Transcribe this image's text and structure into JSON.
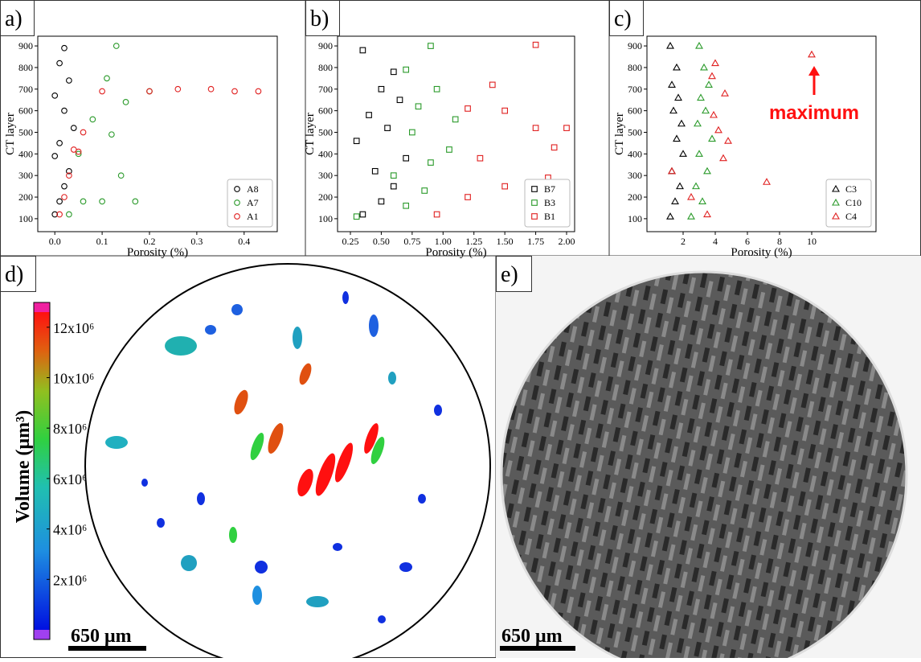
{
  "chart_data": [
    {
      "type": "scatter",
      "panel_label": "a)",
      "xlabel": "Porosity (%)",
      "ylabel": "CT layer",
      "xlim": [
        -0.036,
        0.47
      ],
      "ylim": [
        40,
        945
      ],
      "xticks": [
        {
          "value": 0,
          "label": "0.0"
        },
        0.1,
        0.2,
        0.3,
        0.4
      ],
      "yticks": [
        100,
        200,
        300,
        400,
        500,
        600,
        700,
        800,
        900
      ],
      "legend": "lower right",
      "series": [
        {
          "name": "A8",
          "color": "#000000",
          "marker": "circle",
          "x": [
            0.0,
            0.01,
            0.02,
            0.03,
            0.0,
            0.01,
            0.04,
            0.02,
            0.0,
            0.03,
            0.01,
            0.02
          ],
          "values": [
            120,
            180,
            250,
            320,
            390,
            450,
            520,
            600,
            670,
            740,
            820,
            890
          ]
        },
        {
          "name": "A7",
          "color": "#2a9a2a",
          "marker": "circle",
          "x": [
            0.03,
            0.06,
            0.1,
            0.14,
            0.17,
            0.05,
            0.12,
            0.08,
            0.15,
            0.2,
            0.11,
            0.13
          ],
          "values": [
            120,
            180,
            180,
            300,
            180,
            400,
            490,
            560,
            640,
            690,
            750,
            900
          ]
        },
        {
          "name": "A1",
          "color": "#e02020",
          "marker": "circle",
          "x": [
            0.01,
            0.02,
            0.03,
            0.05,
            0.04,
            0.06,
            0.1,
            0.2,
            0.26,
            0.33,
            0.38,
            0.43
          ],
          "values": [
            120,
            200,
            300,
            410,
            420,
            500,
            690,
            690,
            700,
            700,
            690,
            690
          ]
        }
      ]
    },
    {
      "type": "scatter",
      "panel_label": "b)",
      "xlabel": "Porosity (%)",
      "ylabel": "CT layer",
      "xlim": [
        0.146,
        2.065
      ],
      "ylim": [
        40,
        945
      ],
      "xticks": [
        0.25,
        {
          "value": 0.5,
          "label": "0.50"
        },
        0.75,
        {
          "value": 1,
          "label": "1.00"
        },
        1.25,
        {
          "value": 1.5,
          "label": "1.50"
        },
        1.75,
        {
          "value": 2,
          "label": "2.00"
        }
      ],
      "yticks": [
        100,
        200,
        300,
        400,
        500,
        600,
        700,
        800,
        900
      ],
      "legend": "lower right",
      "series": [
        {
          "name": "B7",
          "color": "#000000",
          "marker": "square",
          "x": [
            0.35,
            0.5,
            0.6,
            0.45,
            0.7,
            0.3,
            0.55,
            0.4,
            0.65,
            0.5,
            0.6,
            0.35
          ],
          "values": [
            120,
            180,
            250,
            320,
            380,
            460,
            520,
            580,
            650,
            700,
            780,
            880
          ]
        },
        {
          "name": "B3",
          "color": "#2a9a2a",
          "marker": "square",
          "x": [
            0.3,
            0.7,
            0.85,
            0.6,
            0.9,
            1.05,
            0.75,
            1.1,
            0.8,
            0.95,
            0.7,
            0.9
          ],
          "values": [
            110,
            160,
            230,
            300,
            360,
            420,
            500,
            560,
            620,
            700,
            790,
            900
          ]
        },
        {
          "name": "B1",
          "color": "#e02020",
          "marker": "square",
          "x": [
            0.95,
            1.2,
            1.5,
            1.85,
            1.3,
            1.9,
            1.75,
            2.0,
            1.5,
            1.2,
            1.4,
            1.75
          ],
          "values": [
            120,
            200,
            250,
            290,
            380,
            430,
            520,
            520,
            600,
            610,
            720,
            905
          ]
        }
      ]
    },
    {
      "type": "scatter",
      "panel_label": "c)",
      "xlabel": "Porosity (%)",
      "ylabel": "CT layer",
      "annotation": "maximum",
      "xlim": [
        -0.25,
        14
      ],
      "ylim": [
        40,
        945
      ],
      "xticks": [
        2,
        4,
        6,
        8,
        10
      ],
      "yticks": [
        100,
        200,
        300,
        400,
        500,
        600,
        700,
        800,
        900
      ],
      "legend": "lower right",
      "series": [
        {
          "name": "C3",
          "color": "#000000",
          "marker": "triangle",
          "x": [
            1.2,
            1.5,
            1.8,
            1.3,
            2.0,
            1.6,
            1.9,
            1.4,
            1.7,
            1.3,
            1.6,
            1.2
          ],
          "values": [
            110,
            180,
            250,
            320,
            400,
            470,
            540,
            600,
            660,
            720,
            800,
            900
          ]
        },
        {
          "name": "C10",
          "color": "#2a9a2a",
          "marker": "triangle",
          "x": [
            2.5,
            3.2,
            2.8,
            3.5,
            3.0,
            3.8,
            2.9,
            3.4,
            3.1,
            3.6,
            3.3,
            3.0
          ],
          "values": [
            110,
            180,
            250,
            320,
            400,
            470,
            540,
            600,
            660,
            720,
            800,
            900
          ]
        },
        {
          "name": "C4",
          "color": "#e02020",
          "marker": "triangle",
          "x": [
            3.5,
            2.5,
            7.2,
            1.3,
            4.5,
            4.8,
            4.2,
            3.9,
            4.6,
            3.8,
            4.0,
            10.0
          ],
          "values": [
            120,
            200,
            270,
            320,
            380,
            460,
            510,
            580,
            680,
            760,
            820,
            860
          ]
        }
      ]
    }
  ],
  "panels": {
    "d": {
      "label": "d)",
      "scale_bar": "650 μm",
      "colorbar": {
        "label": "Volume (μm³)",
        "lim": [
          0,
          12600000
        ],
        "ticks": [
          {
            "value": 2000000,
            "label": "2x10⁶"
          },
          {
            "value": 4000000,
            "label": "4x10⁶"
          },
          {
            "value": 6000000,
            "label": "6x10⁶"
          },
          {
            "value": 8000000,
            "label": "8x10⁶"
          },
          {
            "value": 10000000,
            "label": "10x10⁶"
          },
          {
            "value": 12000000,
            "label": "12x10⁶"
          }
        ]
      }
    },
    "e": {
      "label": "e)",
      "scale_bar": "650 μm"
    }
  }
}
